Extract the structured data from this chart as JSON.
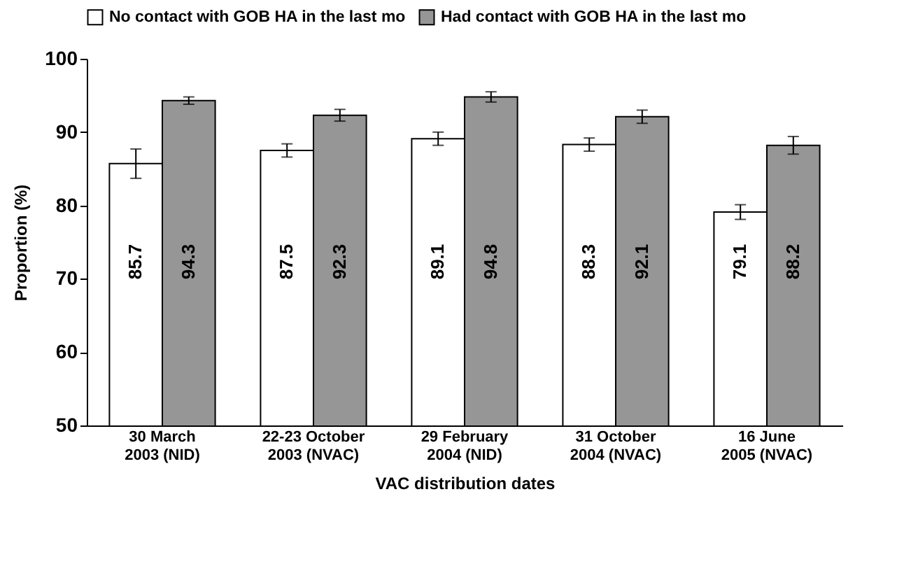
{
  "chart_data": {
    "type": "bar",
    "xlabel": "VAC distribution dates",
    "ylabel": "Proportion (%)",
    "categories": [
      "30 March 2003 (NID)",
      "22-23 October 2003 (NVAC)",
      "29 February 2004 (NID)",
      "31 October 2004 (NVAC)",
      "16 June 2005 (NVAC)"
    ],
    "series": [
      {
        "name": "No contact with GOB HA in the last mo",
        "color": "#ffffff",
        "values": [
          85.7,
          87.5,
          89.1,
          88.3,
          79.1
        ],
        "errors": [
          2.0,
          0.9,
          0.9,
          0.9,
          1.0
        ]
      },
      {
        "name": "Had contact with GOB HA in the last mo",
        "color": "#969696",
        "values": [
          94.3,
          92.3,
          94.8,
          92.1,
          88.2
        ],
        "errors": [
          0.5,
          0.8,
          0.7,
          0.9,
          1.2
        ]
      }
    ],
    "ylim": [
      50,
      100
    ],
    "yticks": [
      50,
      60,
      70,
      80,
      90,
      100
    ],
    "grid": false,
    "legend": "top",
    "data_labels": true
  }
}
